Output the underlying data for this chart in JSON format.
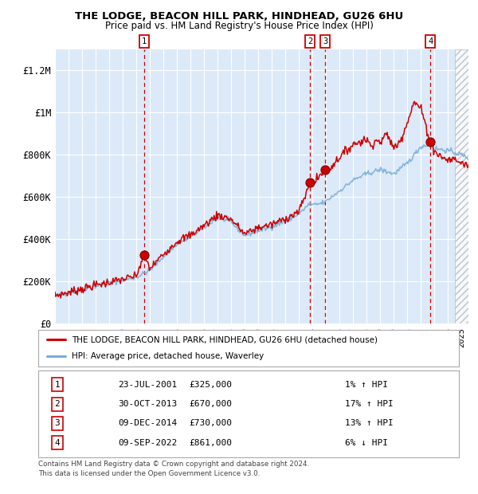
{
  "title": "THE LODGE, BEACON HILL PARK, HINDHEAD, GU26 6HU",
  "subtitle": "Price paid vs. HM Land Registry's House Price Index (HPI)",
  "legend_line1": "THE LODGE, BEACON HILL PARK, HINDHEAD, GU26 6HU (detached house)",
  "legend_line2": "HPI: Average price, detached house, Waverley",
  "red_line_color": "#cc0000",
  "blue_line_color": "#7aaed6",
  "bg_color": "#dce9f8",
  "grid_color": "#ffffff",
  "dashed_vline_color": "#cc0000",
  "footnote1": "Contains HM Land Registry data © Crown copyright and database right 2024.",
  "footnote2": "This data is licensed under the Open Government Licence v3.0.",
  "table_rows": [
    {
      "num": 1,
      "date_str": "23-JUL-2001",
      "price_str": "£325,000",
      "hpi_str": "1% ↑ HPI"
    },
    {
      "num": 2,
      "date_str": "30-OCT-2013",
      "price_str": "£670,000",
      "hpi_str": "17% ↑ HPI"
    },
    {
      "num": 3,
      "date_str": "09-DEC-2014",
      "price_str": "£730,000",
      "hpi_str": "13% ↑ HPI"
    },
    {
      "num": 4,
      "date_str": "09-SEP-2022",
      "price_str": "£861,000",
      "hpi_str": "6% ↓ HPI"
    }
  ],
  "ylim": [
    0,
    1300000
  ],
  "yticks": [
    0,
    200000,
    400000,
    600000,
    800000,
    1000000,
    1200000
  ],
  "ytick_labels": [
    "£0",
    "£200K",
    "£400K",
    "£600K",
    "£800K",
    "£1M",
    "£1.2M"
  ],
  "xstart": 1995.0,
  "xend": 2025.5,
  "hatch_xstart": 2024.5,
  "hatch_xend": 2025.5,
  "transaction_dates": [
    {
      "num": 1,
      "year": 2001.56,
      "price": 325000
    },
    {
      "num": 2,
      "year": 2013.83,
      "price": 670000
    },
    {
      "num": 3,
      "year": 2014.92,
      "price": 730000
    },
    {
      "num": 4,
      "year": 2022.69,
      "price": 861000
    }
  ]
}
